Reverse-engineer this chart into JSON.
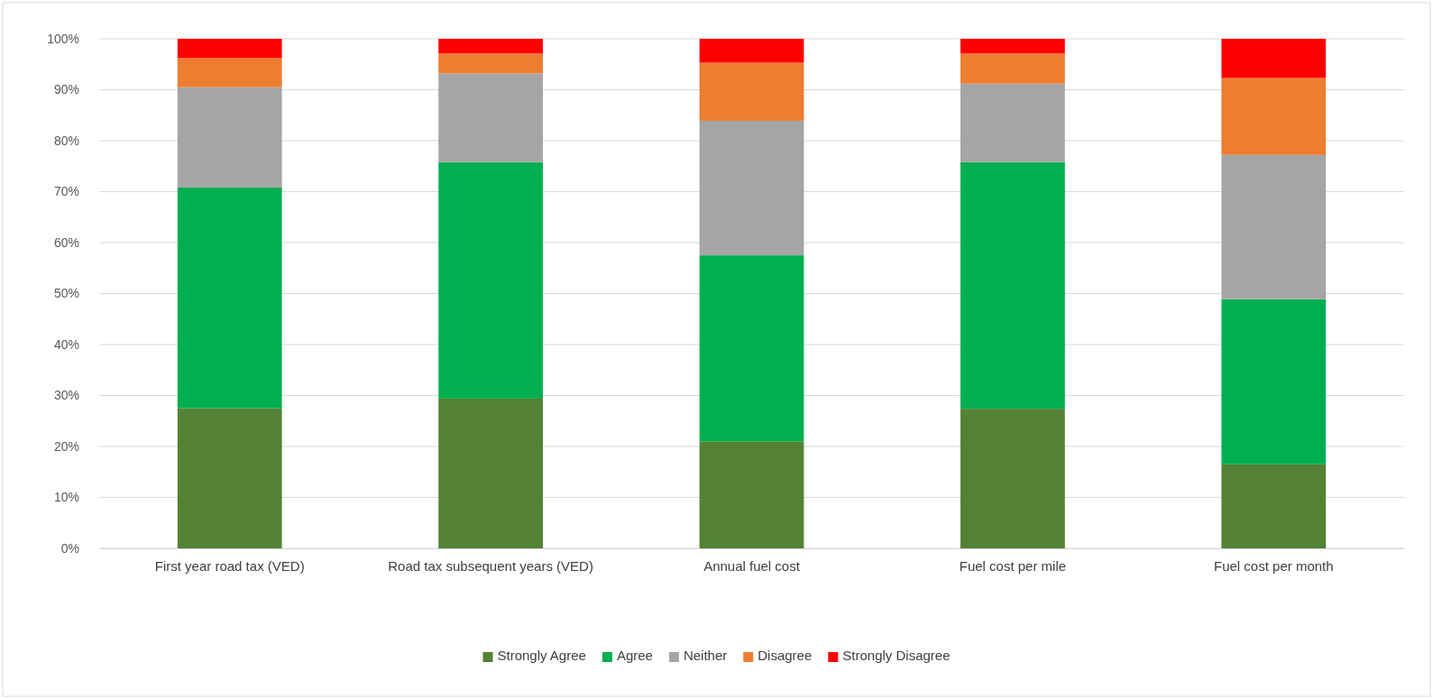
{
  "chart_data": {
    "type": "bar",
    "stacked": true,
    "categories": [
      "First year road tax (VED)",
      "Road tax subsequent years (VED)",
      "Annual fuel cost",
      "Fuel cost per mile",
      "Fuel cost per month"
    ],
    "series": [
      {
        "name": "Strongly Agree",
        "color": "#548235",
        "values": [
          27.5,
          29.4,
          21,
          27.4,
          16.5
        ]
      },
      {
        "name": "Agree",
        "color": "#00b050",
        "values": [
          43.3,
          46.4,
          36.5,
          48.4,
          32.4
        ]
      },
      {
        "name": "Neither",
        "color": "#a5a5a5",
        "values": [
          19.7,
          17.4,
          26.4,
          15.4,
          28.3
        ]
      },
      {
        "name": "Disagree",
        "color": "#ed7d31",
        "values": [
          5.7,
          3.9,
          11.4,
          5.9,
          15.1
        ]
      },
      {
        "name": "Strongly Disagree",
        "color": "#ff0000",
        "values": [
          3.8,
          2.9,
          4.7,
          2.9,
          7.7
        ]
      }
    ],
    "ylim": [
      0,
      100
    ],
    "yticks": [
      {
        "value": 0,
        "label": "0%"
      },
      {
        "value": 10,
        "label": "10%"
      },
      {
        "value": 20,
        "label": "20%"
      },
      {
        "value": 30,
        "label": "30%"
      },
      {
        "value": 40,
        "label": "40%"
      },
      {
        "value": 50,
        "label": "50%"
      },
      {
        "value": 60,
        "label": "60%"
      },
      {
        "value": 70,
        "label": "70%"
      },
      {
        "value": 80,
        "label": "80%"
      },
      {
        "value": 90,
        "label": "90%"
      },
      {
        "value": 100,
        "label": "100%"
      }
    ],
    "grid": "y",
    "legend": "bottom"
  }
}
